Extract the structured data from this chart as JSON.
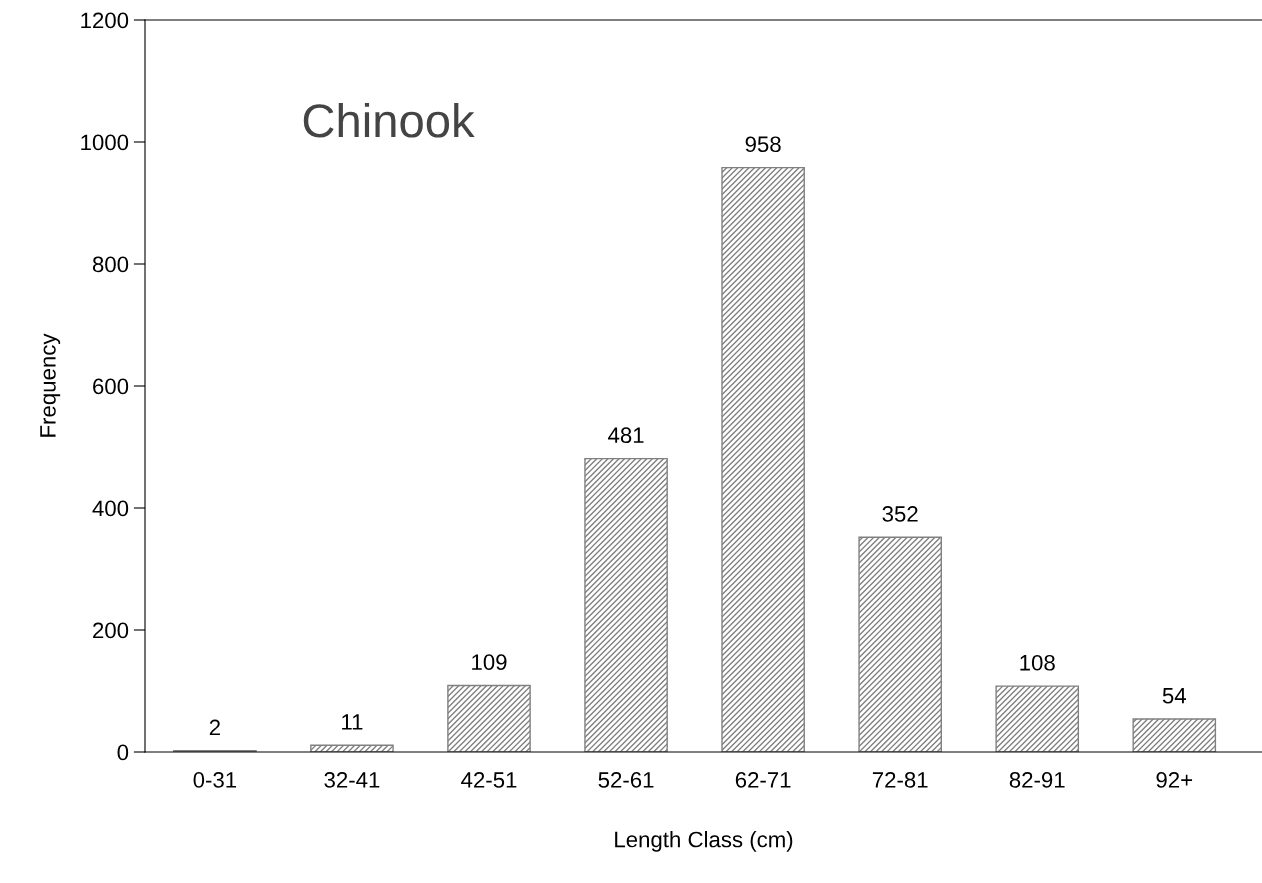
{
  "chart_data": {
    "type": "bar",
    "xlabel": "Length Class (cm)",
    "ylabel": "Frequency",
    "categories": [
      "0-31",
      "32-41",
      "42-51",
      "52-61",
      "62-71",
      "72-81",
      "82-91",
      "92+"
    ],
    "values": [
      2,
      11,
      109,
      481,
      958,
      352,
      108,
      54
    ],
    "color": "#808080",
    "data_labels": true,
    "ylim": [
      0,
      1200
    ],
    "yticks": [
      0,
      200,
      400,
      600,
      800,
      1000,
      1200
    ],
    "grid": false,
    "legend": false,
    "annotations": [
      "Chinook"
    ]
  }
}
